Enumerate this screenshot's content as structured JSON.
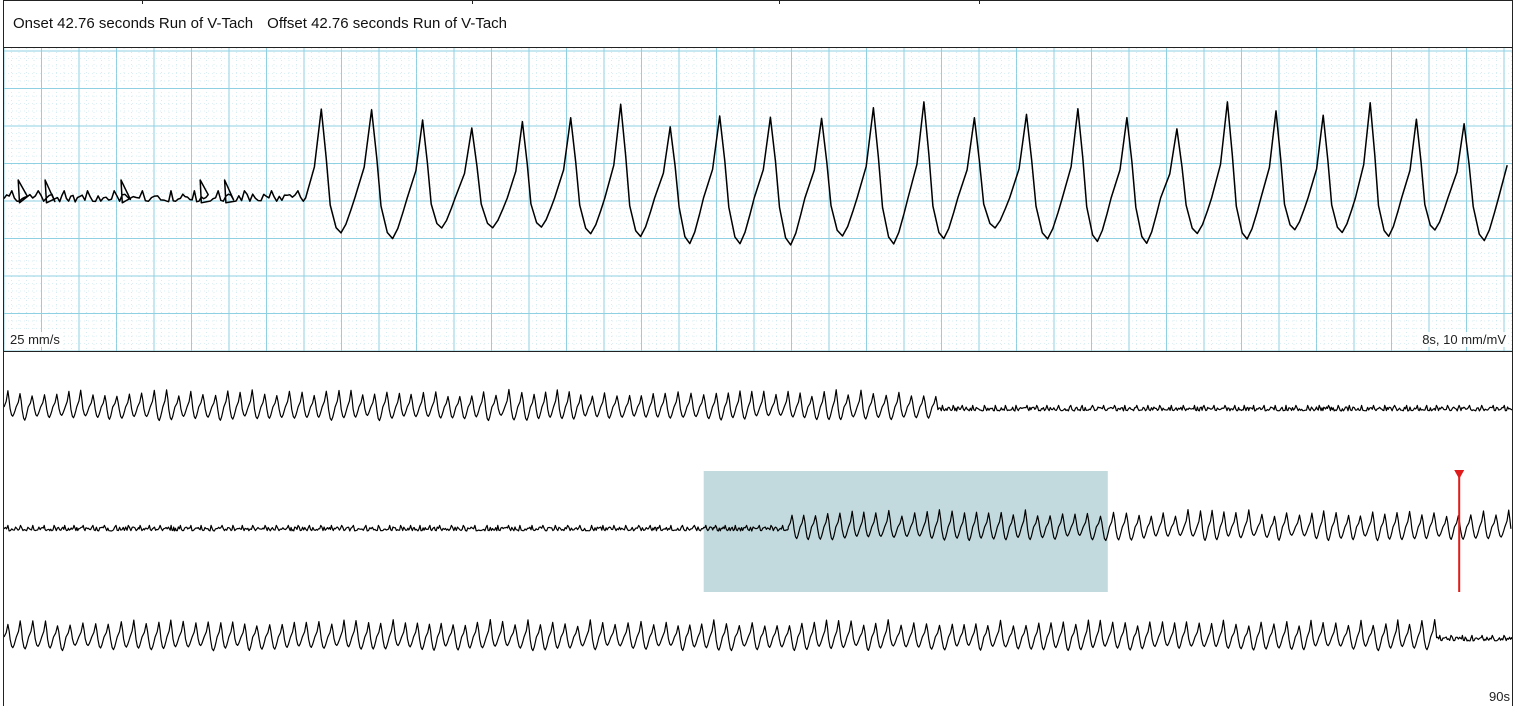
{
  "event": {
    "onset_text": "Onset 42.76 seconds Run of V-Tach",
    "offset_text": "Offset 42.76 seconds Run of V-Tach"
  },
  "strip": {
    "speed_label": "25 mm/s",
    "scale_label": "8s, 10 mm/mV"
  },
  "overview": {
    "duration_label": "90s"
  },
  "colors": {
    "grid_major": "#8fd0e2",
    "grid_minor": "#b9dfe9",
    "trace": "#000000",
    "selection": "#c2dade",
    "marker": "#e01b1b"
  },
  "chart_data": {
    "type": "line",
    "title": "",
    "strip": {
      "duration_s": 8,
      "speed_mm_per_s": 25,
      "gain_mm_per_mv": 10,
      "rhythm": [
        {
          "segment": "sinus",
          "start_s": 0,
          "end_s": 1.6
        },
        {
          "segment": "v-tach",
          "start_s": 1.6,
          "end_s": 8
        }
      ]
    },
    "overview": {
      "duration_s": 90,
      "rows": 3,
      "row_segments": [
        [
          {
            "segment": "v-tach",
            "start_fraction": 0,
            "end_fraction": 0.62
          },
          {
            "segment": "sinus",
            "start_fraction": 0.62,
            "end_fraction": 1
          }
        ],
        [
          {
            "segment": "sinus",
            "start_fraction": 0,
            "end_fraction": 0.52
          },
          {
            "segment": "v-tach",
            "start_fraction": 0.52,
            "end_fraction": 1
          }
        ],
        [
          {
            "segment": "v-tach",
            "start_fraction": 0,
            "end_fraction": 0.95
          },
          {
            "segment": "sinus",
            "start_fraction": 0.95,
            "end_fraction": 1
          }
        ]
      ],
      "selection": {
        "row": 2,
        "start_fraction": 0.464,
        "end_fraction": 0.732
      },
      "cursor": {
        "row": 2,
        "fraction": 0.965
      }
    }
  }
}
